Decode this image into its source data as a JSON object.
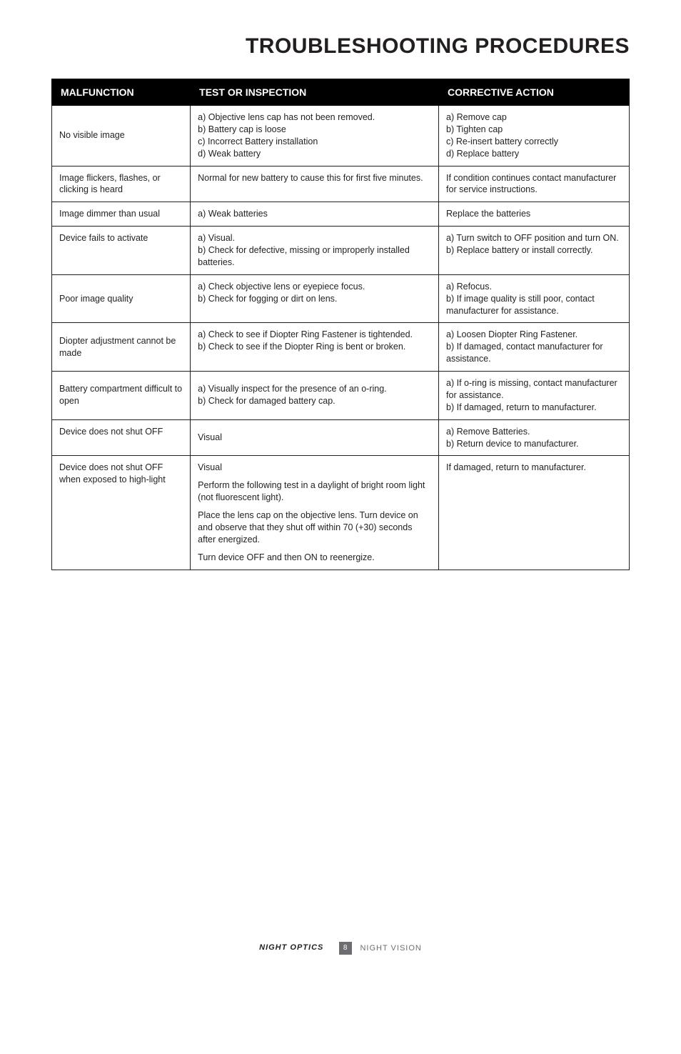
{
  "page": {
    "title": "TROUBLESHOOTING PROCEDURES",
    "title_fontsize": 30,
    "title_align": "right",
    "title_weight": 900,
    "background_color": "#ffffff",
    "text_color": "#231f20"
  },
  "table": {
    "header_bg": "#000000",
    "header_fg": "#ffffff",
    "border_color": "#231f20",
    "cell_fontsize": 12.5,
    "header_fontsize": 14,
    "column_widths_pct": [
      24,
      43,
      33
    ],
    "columns": [
      "MALFUNCTION",
      "TEST OR INSPECTION",
      "CORRECTIVE ACTION"
    ],
    "rows": [
      {
        "malfunction": "No visible image",
        "test": "a) Objective lens cap has not been removed.\nb) Battery cap is loose\nc) Incorrect Battery installation\nd) Weak battery",
        "action": "a) Remove cap\nb) Tighten cap\nc) Re-insert battery correctly\nd) Replace battery"
      },
      {
        "malfunction": "Image flickers, flashes, or clicking is heard",
        "test": "Normal for new battery to cause this for first five minutes.",
        "action": "If condition continues contact manufacturer for service instructions."
      },
      {
        "malfunction": "Image dimmer than usual",
        "test": "a) Weak batteries",
        "action": "Replace the batteries"
      },
      {
        "malfunction": "Device fails to activate",
        "test": "a) Visual.\nb) Check for defective, missing or improperly installed batteries.",
        "action": "a) Turn switch to OFF position and turn ON.\nb) Replace battery or install correctly."
      },
      {
        "malfunction": "Poor image quality",
        "test": "a) Check objective lens or eyepiece focus.\nb) Check for fogging or dirt on lens.",
        "action": "a) Refocus.\nb) If image quality is still poor, contact manufacturer for assistance."
      },
      {
        "malfunction": "Diopter adjustment cannot be made",
        "test": "a) Check to see if Diopter Ring Fastener is tightended.\nb) Check to see if the Diopter Ring is bent or broken.",
        "action": "a) Loosen Diopter Ring Fastener.\nb) If damaged, contact manufacturer for assistance."
      },
      {
        "malfunction": "Battery compartment difficult to open",
        "test": "a) Visually inspect for the presence of an o-ring.\nb) Check for damaged battery cap.",
        "action": "a) If o-ring is missing, contact manufacturer for assistance.\nb) If damaged, return to manufacturer."
      },
      {
        "malfunction": "Device does not shut OFF",
        "test": "Visual",
        "action": "a) Remove Batteries.\nb) Return device to manufacturer."
      },
      {
        "malfunction": "Device does not shut OFF when exposed to high-light",
        "test_paragraphs": [
          "Visual",
          "Perform the following test in a daylight of bright room light (not fluorescent light).",
          "Place the lens cap on the objective lens. Turn device on and observe that they shut off within 70 (+30) seconds after energized.",
          "Turn device OFF and then ON to reenergize."
        ],
        "action": "If damaged, return to manufacturer."
      }
    ]
  },
  "footer": {
    "brand": "NIGHT OPTICS",
    "page_number": "8",
    "section": "NIGHT VISION",
    "page_badge_bg": "#6d6e71",
    "page_badge_fg": "#ffffff",
    "section_color": "#6d6e71",
    "fontsize": 11
  }
}
